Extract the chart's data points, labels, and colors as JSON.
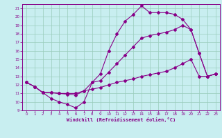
{
  "xlabel": "Windchill (Refroidissement éolien,°C)",
  "bg_color": "#c8eef0",
  "line_color": "#880088",
  "grid_color": "#99ccbb",
  "xlim": [
    -0.5,
    23.5
  ],
  "ylim": [
    9,
    21.5
  ],
  "xticks": [
    0,
    1,
    2,
    3,
    4,
    5,
    6,
    7,
    8,
    9,
    10,
    11,
    12,
    13,
    14,
    15,
    16,
    17,
    18,
    19,
    20,
    21,
    22,
    23
  ],
  "yticks": [
    9,
    10,
    11,
    12,
    13,
    14,
    15,
    16,
    17,
    18,
    19,
    20,
    21
  ],
  "line1_x": [
    0,
    1,
    2,
    3,
    4,
    5,
    6,
    7,
    8,
    9,
    10,
    11,
    12,
    13,
    14,
    15,
    16,
    17,
    18,
    19,
    20,
    21,
    22,
    23
  ],
  "line1_y": [
    12.3,
    11.8,
    11.1,
    10.4,
    10.0,
    9.7,
    9.3,
    10.0,
    12.3,
    13.3,
    16.0,
    18.0,
    19.5,
    20.3,
    21.3,
    20.5,
    20.5,
    20.5,
    20.3,
    19.7,
    18.5,
    15.7,
    13.0,
    13.3
  ],
  "line2_x": [
    0,
    1,
    2,
    3,
    4,
    5,
    6,
    7,
    8,
    9,
    10,
    11,
    12,
    13,
    14,
    15,
    16,
    17,
    18,
    19,
    20,
    21,
    22,
    23
  ],
  "line2_y": [
    12.3,
    11.8,
    11.1,
    11.1,
    11.0,
    10.9,
    10.8,
    11.3,
    12.3,
    12.5,
    13.5,
    14.5,
    15.5,
    16.5,
    17.5,
    17.8,
    18.0,
    18.2,
    18.5,
    19.0,
    18.5,
    15.7,
    13.0,
    13.3
  ],
  "line3_x": [
    0,
    1,
    2,
    3,
    4,
    5,
    6,
    7,
    8,
    9,
    10,
    11,
    12,
    13,
    14,
    15,
    16,
    17,
    18,
    19,
    20,
    21,
    22,
    23
  ],
  "line3_y": [
    12.3,
    11.8,
    11.1,
    11.1,
    11.0,
    11.0,
    11.0,
    11.3,
    11.5,
    11.7,
    12.0,
    12.3,
    12.5,
    12.7,
    13.0,
    13.2,
    13.4,
    13.6,
    14.0,
    14.5,
    15.0,
    13.0,
    13.0,
    13.3
  ]
}
